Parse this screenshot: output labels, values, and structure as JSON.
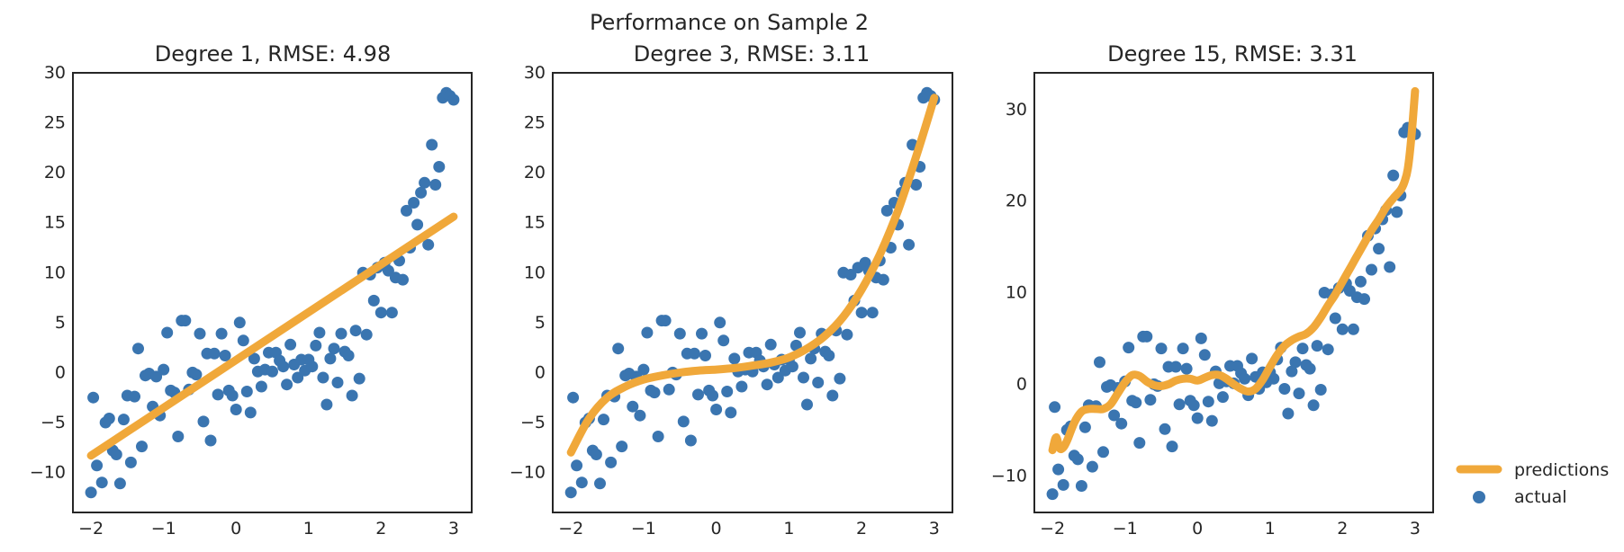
{
  "figure": {
    "suptitle": "Performance on Sample 2"
  },
  "colors": {
    "predictions": "#f0a83a",
    "actual": "#3a75b0",
    "frame": "#262626",
    "background": "#ffffff"
  },
  "legend": {
    "placement": "lower-right-outside",
    "predictions_label": "predictions",
    "actual_label": "actual"
  },
  "chart_data": [
    {
      "type": "scatter",
      "title": "Degree 1, RMSE: 4.98",
      "xlabel": "",
      "ylabel": "",
      "xlim": [
        -2.25,
        3.25
      ],
      "ylim": [
        -14,
        30
      ],
      "xticks": [
        -2,
        -1,
        0,
        1,
        2,
        3
      ],
      "yticks": [
        -10,
        -5,
        0,
        5,
        10,
        15,
        20,
        25,
        30
      ],
      "grid": false,
      "fit": {
        "name": "predictions",
        "x": [
          -2.0,
          3.0
        ],
        "y": [
          -8.3,
          15.6
        ]
      },
      "series_ref": "actual"
    },
    {
      "type": "scatter",
      "title": "Degree 3, RMSE: 3.11",
      "xlabel": "",
      "ylabel": "",
      "xlim": [
        -2.25,
        3.25
      ],
      "ylim": [
        -14,
        30
      ],
      "xticks": [
        -2,
        -1,
        0,
        1,
        2,
        3
      ],
      "yticks": [
        -10,
        -5,
        0,
        5,
        10,
        15,
        20,
        25,
        30
      ],
      "grid": false,
      "fit": {
        "name": "predictions",
        "x": [
          -2.0,
          -1.75,
          -1.5,
          -1.25,
          -1.0,
          -0.75,
          -0.5,
          -0.25,
          0.0,
          0.25,
          0.5,
          0.75,
          1.0,
          1.25,
          1.5,
          1.75,
          2.0,
          2.25,
          2.5,
          2.75,
          3.0
        ],
        "y": [
          -8.0,
          -4.6,
          -2.5,
          -1.4,
          -0.7,
          -0.3,
          0.0,
          0.2,
          0.3,
          0.45,
          0.7,
          1.0,
          1.5,
          2.4,
          3.7,
          5.6,
          8.3,
          11.8,
          16.2,
          21.6,
          27.5
        ]
      },
      "series_ref": "actual"
    },
    {
      "type": "scatter",
      "title": "Degree 15, RMSE: 3.31",
      "xlabel": "",
      "ylabel": "",
      "xlim": [
        -2.25,
        3.25
      ],
      "ylim": [
        -14,
        34
      ],
      "xticks": [
        -2,
        -1,
        0,
        1,
        2,
        3
      ],
      "yticks": [
        -10,
        0,
        10,
        20,
        30
      ],
      "grid": false,
      "fit": {
        "name": "predictions",
        "x": [
          -2.0,
          -1.95,
          -1.9,
          -1.85,
          -1.8,
          -1.7,
          -1.6,
          -1.5,
          -1.4,
          -1.3,
          -1.2,
          -1.1,
          -1.0,
          -0.9,
          -0.8,
          -0.7,
          -0.6,
          -0.5,
          -0.4,
          -0.3,
          -0.2,
          -0.1,
          0.0,
          0.1,
          0.2,
          0.3,
          0.4,
          0.5,
          0.6,
          0.7,
          0.8,
          0.9,
          1.0,
          1.1,
          1.2,
          1.3,
          1.4,
          1.5,
          1.6,
          1.7,
          1.8,
          1.9,
          2.0,
          2.1,
          2.2,
          2.3,
          2.4,
          2.5,
          2.6,
          2.7,
          2.8,
          2.85,
          2.9,
          2.95,
          3.0
        ],
        "y": [
          -7.2,
          -5.8,
          -7.0,
          -6.9,
          -6.2,
          -4.2,
          -3.0,
          -2.7,
          -2.7,
          -2.7,
          -2.2,
          -1.0,
          0.2,
          1.0,
          0.9,
          0.3,
          -0.1,
          -0.2,
          0.0,
          0.4,
          0.6,
          0.6,
          0.4,
          0.7,
          1.0,
          1.0,
          0.6,
          0.0,
          -0.5,
          -0.8,
          -0.5,
          0.5,
          1.9,
          3.2,
          4.2,
          4.8,
          5.2,
          5.5,
          6.2,
          7.3,
          8.6,
          9.8,
          11.2,
          12.6,
          14.0,
          15.4,
          16.8,
          18.0,
          19.3,
          20.3,
          21.2,
          22.0,
          23.5,
          27.0,
          32.0
        ]
      },
      "series_ref": "actual"
    }
  ],
  "actual": {
    "name": "actual",
    "x": [
      -2.0,
      -1.97,
      -1.92,
      -1.85,
      -1.8,
      -1.75,
      -1.7,
      -1.65,
      -1.6,
      -1.55,
      -1.5,
      -1.45,
      -1.4,
      -1.35,
      -1.3,
      -1.25,
      -1.2,
      -1.15,
      -1.1,
      -1.05,
      -1.0,
      -0.95,
      -0.9,
      -0.85,
      -0.8,
      -0.75,
      -0.7,
      -0.65,
      -0.6,
      -0.55,
      -0.5,
      -0.45,
      -0.4,
      -0.35,
      -0.3,
      -0.25,
      -0.2,
      -0.15,
      -0.1,
      -0.05,
      0.0,
      0.05,
      0.1,
      0.15,
      0.2,
      0.25,
      0.3,
      0.35,
      0.4,
      0.45,
      0.5,
      0.55,
      0.6,
      0.65,
      0.7,
      0.75,
      0.8,
      0.85,
      0.9,
      0.95,
      1.0,
      1.05,
      1.1,
      1.15,
      1.2,
      1.25,
      1.3,
      1.35,
      1.4,
      1.45,
      1.5,
      1.55,
      1.6,
      1.65,
      1.7,
      1.75,
      1.8,
      1.85,
      1.9,
      1.95,
      2.0,
      2.05,
      2.1,
      2.15,
      2.2,
      2.25,
      2.3,
      2.35,
      2.4,
      2.45,
      2.5,
      2.55,
      2.6,
      2.65,
      2.7,
      2.75,
      2.8,
      2.85,
      2.9,
      2.95,
      3.0
    ],
    "y": [
      -12.0,
      -2.5,
      -9.3,
      -11.0,
      -5.0,
      -4.6,
      -7.8,
      -8.2,
      -11.1,
      -4.7,
      -2.3,
      -9.0,
      -2.4,
      2.4,
      -7.4,
      -0.3,
      -0.1,
      -3.4,
      -0.4,
      -4.3,
      0.3,
      4.0,
      -1.8,
      -2.0,
      -6.4,
      5.2,
      5.2,
      -1.7,
      0.0,
      -0.2,
      3.9,
      -4.9,
      1.9,
      -6.8,
      1.9,
      -2.2,
      3.9,
      1.7,
      -1.8,
      -2.3,
      -3.7,
      5.0,
      3.2,
      -1.9,
      -4.0,
      1.4,
      0.1,
      -1.4,
      0.3,
      2.0,
      0.1,
      2.0,
      1.2,
      0.6,
      -1.2,
      2.8,
      0.8,
      -0.5,
      1.3,
      0.2,
      1.3,
      0.6,
      2.7,
      4.0,
      -0.5,
      -3.2,
      1.4,
      2.4,
      -1.0,
      3.9,
      2.1,
      1.7,
      -2.3,
      4.2,
      -0.6,
      10.0,
      3.8,
      9.8,
      7.2,
      10.5,
      6.0,
      11.0,
      10.2,
      6.0,
      9.5,
      11.2,
      9.3,
      16.2,
      12.5,
      17.0,
      14.8,
      18.0,
      19.0,
      12.8,
      22.8,
      18.8,
      20.6,
      27.5,
      28.0,
      27.7,
      27.3
    ]
  }
}
